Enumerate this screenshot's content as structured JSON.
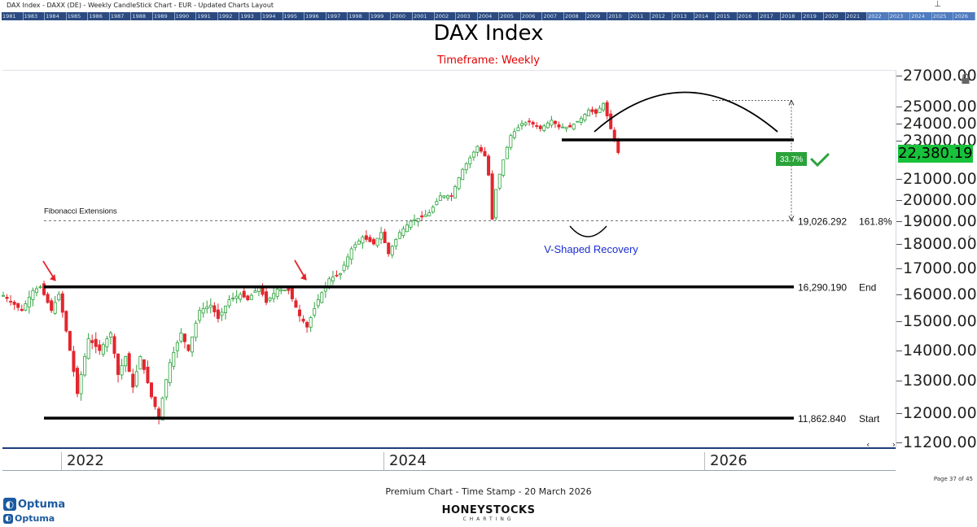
{
  "topbar": {
    "title": "DAX Index - DAXX (DE) - Weekly CandleStick Chart - EUR - Updated Charts Layout",
    "pin_icon": "pin-icon"
  },
  "timeline": [
    "1981",
    "1983",
    "1984",
    "1985",
    "1986",
    "1987",
    "1988",
    "1989",
    "1990",
    "1991",
    "1992",
    "1993",
    "1994",
    "1995",
    "1996",
    "1997",
    "1998",
    "1999",
    "2000",
    "2001",
    "2002",
    "2003",
    "2004",
    "2005",
    "2006",
    "2007",
    "2008",
    "2009",
    "2010",
    "2011",
    "2012",
    "2013",
    "2014",
    "2015",
    "2016",
    "2017",
    "2018",
    "2019",
    "2020",
    "2021",
    "2022",
    "2023",
    "2024",
    "2025",
    "2026"
  ],
  "header": {
    "title": "DAX Index",
    "timeframe": "Timeframe: Weekly"
  },
  "chart_data": {
    "type": "candlestick",
    "title": "DAX Index",
    "subtitle": "Timeframe: Weekly",
    "ylim": [
      11200,
      27000
    ],
    "y_ticks": [
      "27000.00",
      "25000.00",
      "24000.00",
      "23000.00",
      "21000.00",
      "20000.00",
      "19000.00",
      "18000.00",
      "17000.00",
      "16000.00",
      "15000.00",
      "14000.00",
      "13000.00",
      "12000.00",
      "11200.00"
    ],
    "x_labels": [
      "2022",
      "2024",
      "2026"
    ],
    "last_price": "22,380.19",
    "path": [
      [
        0,
        15960
      ],
      [
        5,
        15400
      ],
      [
        8,
        16150
      ],
      [
        10,
        16290
      ],
      [
        13,
        15400
      ],
      [
        15,
        16000
      ],
      [
        18,
        14000
      ],
      [
        20,
        12600
      ],
      [
        23,
        14400
      ],
      [
        26,
        14000
      ],
      [
        29,
        14600
      ],
      [
        31,
        13200
      ],
      [
        33,
        13800
      ],
      [
        35,
        12800
      ],
      [
        37,
        13800
      ],
      [
        40,
        12500
      ],
      [
        42,
        11900
      ],
      [
        45,
        13600
      ],
      [
        48,
        14600
      ],
      [
        50,
        14000
      ],
      [
        53,
        15400
      ],
      [
        56,
        15600
      ],
      [
        58,
        15100
      ],
      [
        61,
        15800
      ],
      [
        64,
        16000
      ],
      [
        66,
        15800
      ],
      [
        69,
        16300
      ],
      [
        71,
        15700
      ],
      [
        74,
        16200
      ],
      [
        77,
        16150
      ],
      [
        80,
        15200
      ],
      [
        82,
        14800
      ],
      [
        85,
        15800
      ],
      [
        88,
        16600
      ],
      [
        91,
        16800
      ],
      [
        94,
        17800
      ],
      [
        97,
        18300
      ],
      [
        100,
        18000
      ],
      [
        102,
        18500
      ],
      [
        104,
        17600
      ],
      [
        107,
        18500
      ],
      [
        110,
        19000
      ],
      [
        113,
        19200
      ],
      [
        115,
        19400
      ],
      [
        118,
        20200
      ],
      [
        121,
        20200
      ],
      [
        124,
        21500
      ],
      [
        126,
        22100
      ],
      [
        128,
        22700
      ],
      [
        130,
        22200
      ],
      [
        131,
        21200
      ],
      [
        132,
        19100
      ],
      [
        133,
        20500
      ],
      [
        135,
        22000
      ],
      [
        137,
        23300
      ],
      [
        140,
        24000
      ],
      [
        142,
        24100
      ],
      [
        145,
        23700
      ],
      [
        148,
        24200
      ],
      [
        150,
        23800
      ],
      [
        153,
        23800
      ],
      [
        156,
        24300
      ],
      [
        158,
        24800
      ],
      [
        160,
        24600
      ],
      [
        162,
        25200
      ],
      [
        164,
        23700
      ],
      [
        165,
        23000
      ],
      [
        166,
        22380
      ]
    ],
    "levels": [
      {
        "label": "Start",
        "value": "11,862.840",
        "y": 11862.84
      },
      {
        "label": "End",
        "value": "16,290.190",
        "y": 16290.19
      },
      {
        "label": "161.8%",
        "value": "19,026.292",
        "y": 19026.292
      },
      {
        "label": "",
        "value": "",
        "y": 23050
      }
    ],
    "fib_label": "Fibonacci Extensions",
    "percent_box": "33.7%",
    "annotations": {
      "v_shaped": "V-Shaped Recovery"
    }
  },
  "colors": {
    "up": "#2ba33a",
    "down": "#e3262e",
    "price_tag": "#18c23a",
    "navy": "#1d3f7a",
    "red": "#e00000",
    "blue": "#1a2fd1"
  },
  "footer": {
    "page": "Page 37 of 45",
    "caption": "Premium Chart - Time Stamp - 20 March 2026",
    "optuma_a": "Optuma",
    "optuma_b": "Optuma",
    "honey_big": "HONEYSTOCKS",
    "honey_small": "CHARTING"
  },
  "nav": {
    "left": "‹",
    "right": "›"
  }
}
